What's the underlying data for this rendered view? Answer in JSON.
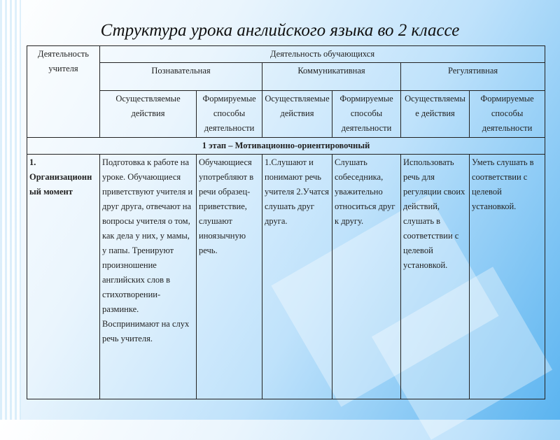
{
  "title": "Структура урока английского языка во 2 классе",
  "table": {
    "teacher_header": "Деятельность учителя",
    "students_header": "Деятельность обучающихся",
    "groups": [
      "Познавательная",
      "Коммуникативная",
      "Регулятивная"
    ],
    "subheaders": [
      "Осуществляемые действия",
      "Формируемые способы деятельности",
      "Осуществляемые действия",
      "Формируемые способы деятельности",
      "Осуществляемые действия",
      "Формируемые способы деятельности"
    ],
    "stage": "1 этап – Мотивационно-ориентировочный",
    "row": {
      "teacher": "1. Организационный момент",
      "cells": [
        "Подготовка к работе на уроке. Обучающиеся приветствуют учителя и друг друга, отвечают на вопросы учителя о том, как дела у них, у мамы, у папы. Тренируют произношение английских слов в стихотворении-разминке. Воспринимают на слух речь учителя.",
        "Обучающиеся употребляют в речи образец-приветствие, слушают иноязычную речь.",
        "1.Слушают и понимают речь учителя 2.Учатся слушать друг друга.",
        "Слушать собеседника, уважительно относиться друг к другу.",
        "Использовать речь для регуляции своих действий, слушать в соответствии с целевой установкой.",
        "Уметь слушать в соответствии с целевой установкой."
      ]
    }
  }
}
